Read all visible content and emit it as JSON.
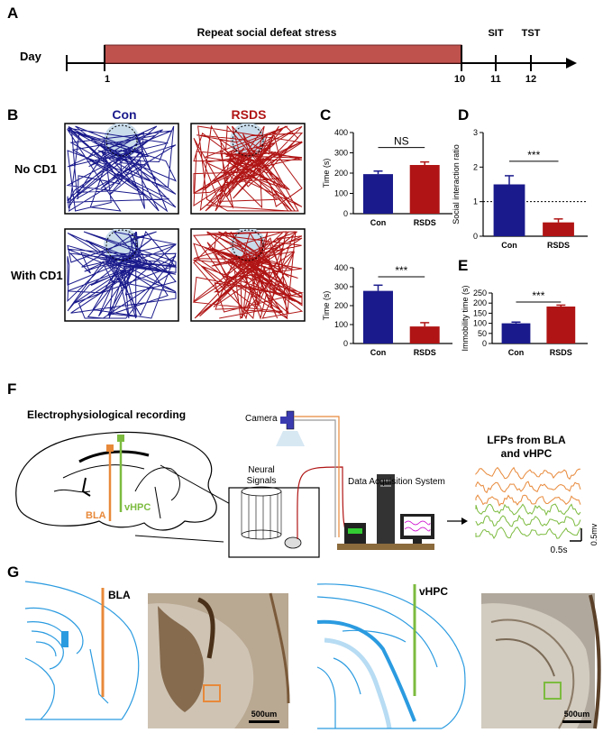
{
  "panels": {
    "A": "A",
    "B": "B",
    "C": "C",
    "D": "D",
    "E": "E",
    "F": "F",
    "G": "G"
  },
  "timeline": {
    "day_label": "Day",
    "bar_label": "Repeat  social defeat stress",
    "ticks": [
      "1",
      "10",
      "11",
      "12"
    ],
    "events": [
      "SIT",
      "TST"
    ]
  },
  "tracks": {
    "con_title": "Con",
    "rsds_title": "RSDS",
    "row1": "No CD1",
    "row2": "With CD1"
  },
  "colors": {
    "con": "#1a1a8c",
    "rsds": "#b01414",
    "bar": "#c0524e",
    "orange": "#e8893a",
    "green": "#7cbb3f",
    "blue": "#2b9be0"
  },
  "chart_data": [
    {
      "type": "bar",
      "categories": [
        "Con",
        "RSDS"
      ],
      "values": [
        195,
        240
      ],
      "errors": [
        15,
        15
      ],
      "ylabel": "Time (s)",
      "ylim": [
        0,
        400
      ],
      "yticks": [
        0,
        100,
        200,
        300,
        400
      ],
      "significance": "NS"
    },
    {
      "type": "bar",
      "categories": [
        "Con",
        "RSDS"
      ],
      "values": [
        278,
        90
      ],
      "errors": [
        30,
        20
      ],
      "ylabel": "Time (s)",
      "ylim": [
        0,
        400
      ],
      "yticks": [
        0,
        100,
        200,
        300,
        400
      ],
      "significance": "***"
    },
    {
      "type": "bar",
      "categories": [
        "Con",
        "RSDS"
      ],
      "values": [
        1.5,
        0.4
      ],
      "errors": [
        0.25,
        0.1
      ],
      "ylabel": "Social interaction ratio",
      "ylim": [
        0,
        3
      ],
      "yticks": [
        0,
        1,
        2,
        3
      ],
      "reference_line": 1,
      "significance": "***"
    },
    {
      "type": "bar",
      "categories": [
        "Con",
        "RSDS"
      ],
      "values": [
        100,
        183
      ],
      "errors": [
        6,
        7
      ],
      "ylabel": "Immobility time (s)",
      "ylim": [
        0,
        250
      ],
      "yticks": [
        0,
        50,
        100,
        150,
        200,
        250
      ],
      "significance": "***"
    }
  ],
  "setup": {
    "ephys": "Electrophysiological recording",
    "bla": "BLA",
    "vhpc": "vHPC",
    "camera": "Camera",
    "neural1": "Neural",
    "neural2": "Signals",
    "das": "Data Acquisition System",
    "lfp1": "LFPs from BLA",
    "lfp2": "and vHPC",
    "scale_v": "0.5mv",
    "scale_t": "0.5s"
  },
  "histology": {
    "bla": "BLA",
    "vhpc": "vHPC",
    "scale1": "500um",
    "scale2": "500um"
  }
}
